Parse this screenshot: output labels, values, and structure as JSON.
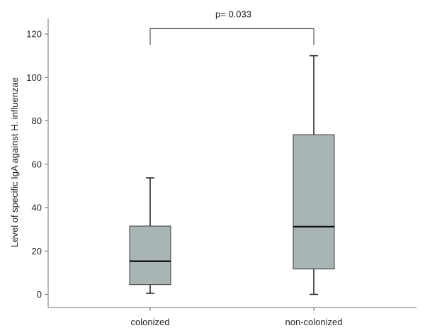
{
  "chart_data": {
    "type": "box",
    "ylabel": "Level of specific IgA against H. influenzae",
    "xlabel": "",
    "ylim": [
      -6,
      125
    ],
    "yticks": [
      0,
      20,
      40,
      60,
      80,
      100,
      120
    ],
    "grid": false,
    "box_color": "#a9b5b5",
    "categories": [
      "colonized",
      "non-colonized"
    ],
    "boxes": [
      {
        "category": "colonized",
        "min": 0.5,
        "q1": 4.5,
        "median": 15.3,
        "q3": 31.5,
        "max": 53.7
      },
      {
        "category": "non-colonized",
        "min": 0,
        "q1": 11.7,
        "median": 31.2,
        "q3": 73.6,
        "max": 110
      }
    ],
    "annotation": {
      "text": "p= 0.033",
      "between": [
        "colonized",
        "non-colonized"
      ],
      "bracket_y": 122.5
    }
  }
}
